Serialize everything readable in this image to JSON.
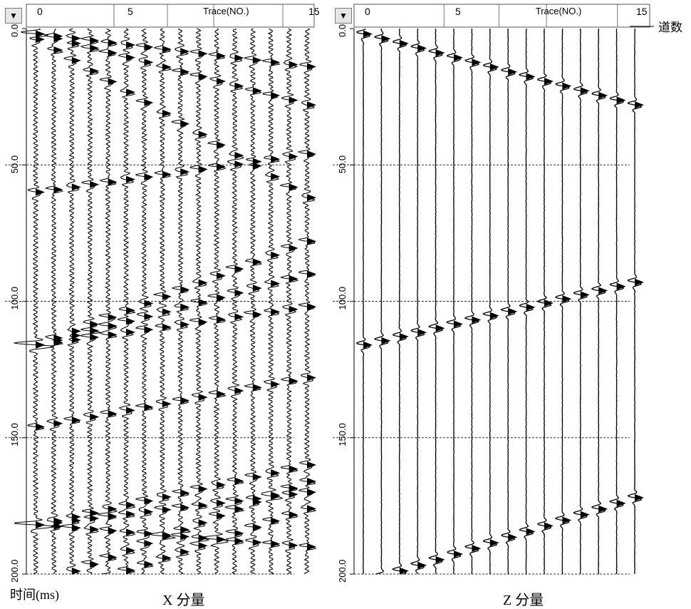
{
  "captions": {
    "time_axis": "时间(ms)",
    "x_panel": "X 分量",
    "z_panel": "Z 分量",
    "trace_count_side": "道数"
  },
  "icons": {
    "dropdown": "chevron-down-icon"
  },
  "colors": {
    "trace": "#000000",
    "grid": "#444444",
    "background": "#ffffff"
  },
  "chart_data": [
    {
      "type": "seismic-wiggle",
      "panel": "X 分量",
      "x_axis_label": "Trace(NO.)",
      "x_tick_labels": [
        "0",
        "5",
        "15"
      ],
      "x_ticks": [
        0,
        5,
        15
      ],
      "trace_count": 16,
      "y_tick_labels": [
        "0.0",
        "50.0",
        "100.0",
        "150.0",
        "200.0"
      ],
      "y_ticks": [
        0,
        50,
        100,
        150,
        200
      ],
      "ylim": [
        0,
        200
      ],
      "grid_lines_ms": [
        50,
        100,
        150
      ],
      "events": [
        {
          "t0": 2,
          "t_end": 14
        },
        {
          "t0": 2,
          "t_end": 28
        },
        {
          "t0": 60,
          "t_end": 46
        },
        {
          "t0": 4,
          "t_end": 62
        },
        {
          "t0": 116,
          "t_end": 78
        },
        {
          "t0": 116,
          "t_end": 90
        },
        {
          "t0": 116,
          "t_end": 102
        },
        {
          "t0": 146,
          "t_end": 128
        },
        {
          "t0": 182,
          "t_end": 160
        },
        {
          "t0": 182,
          "t_end": 170
        },
        {
          "t0": 182,
          "t_end": 190
        },
        {
          "t0": 204,
          "t_end": 166
        },
        {
          "t0": 210,
          "t_end": 176
        }
      ]
    },
    {
      "type": "seismic-wiggle",
      "panel": "Z 分量",
      "x_axis_label": "Trace(NO.)",
      "x_tick_labels": [
        "0",
        "5",
        "15"
      ],
      "x_ticks": [
        0,
        5,
        15
      ],
      "trace_count": 16,
      "y_tick_labels": [
        "0.0",
        "50.0",
        "100.0",
        "150.0",
        "200.0"
      ],
      "y_ticks": [
        0,
        50,
        100,
        150,
        200
      ],
      "ylim": [
        0,
        200
      ],
      "grid_lines_ms": [
        50,
        100,
        150
      ],
      "events": [
        {
          "t0": 2,
          "t_end": 28
        },
        {
          "t0": 116,
          "t_end": 93
        },
        {
          "t0": 203,
          "t_end": 172
        }
      ]
    }
  ]
}
